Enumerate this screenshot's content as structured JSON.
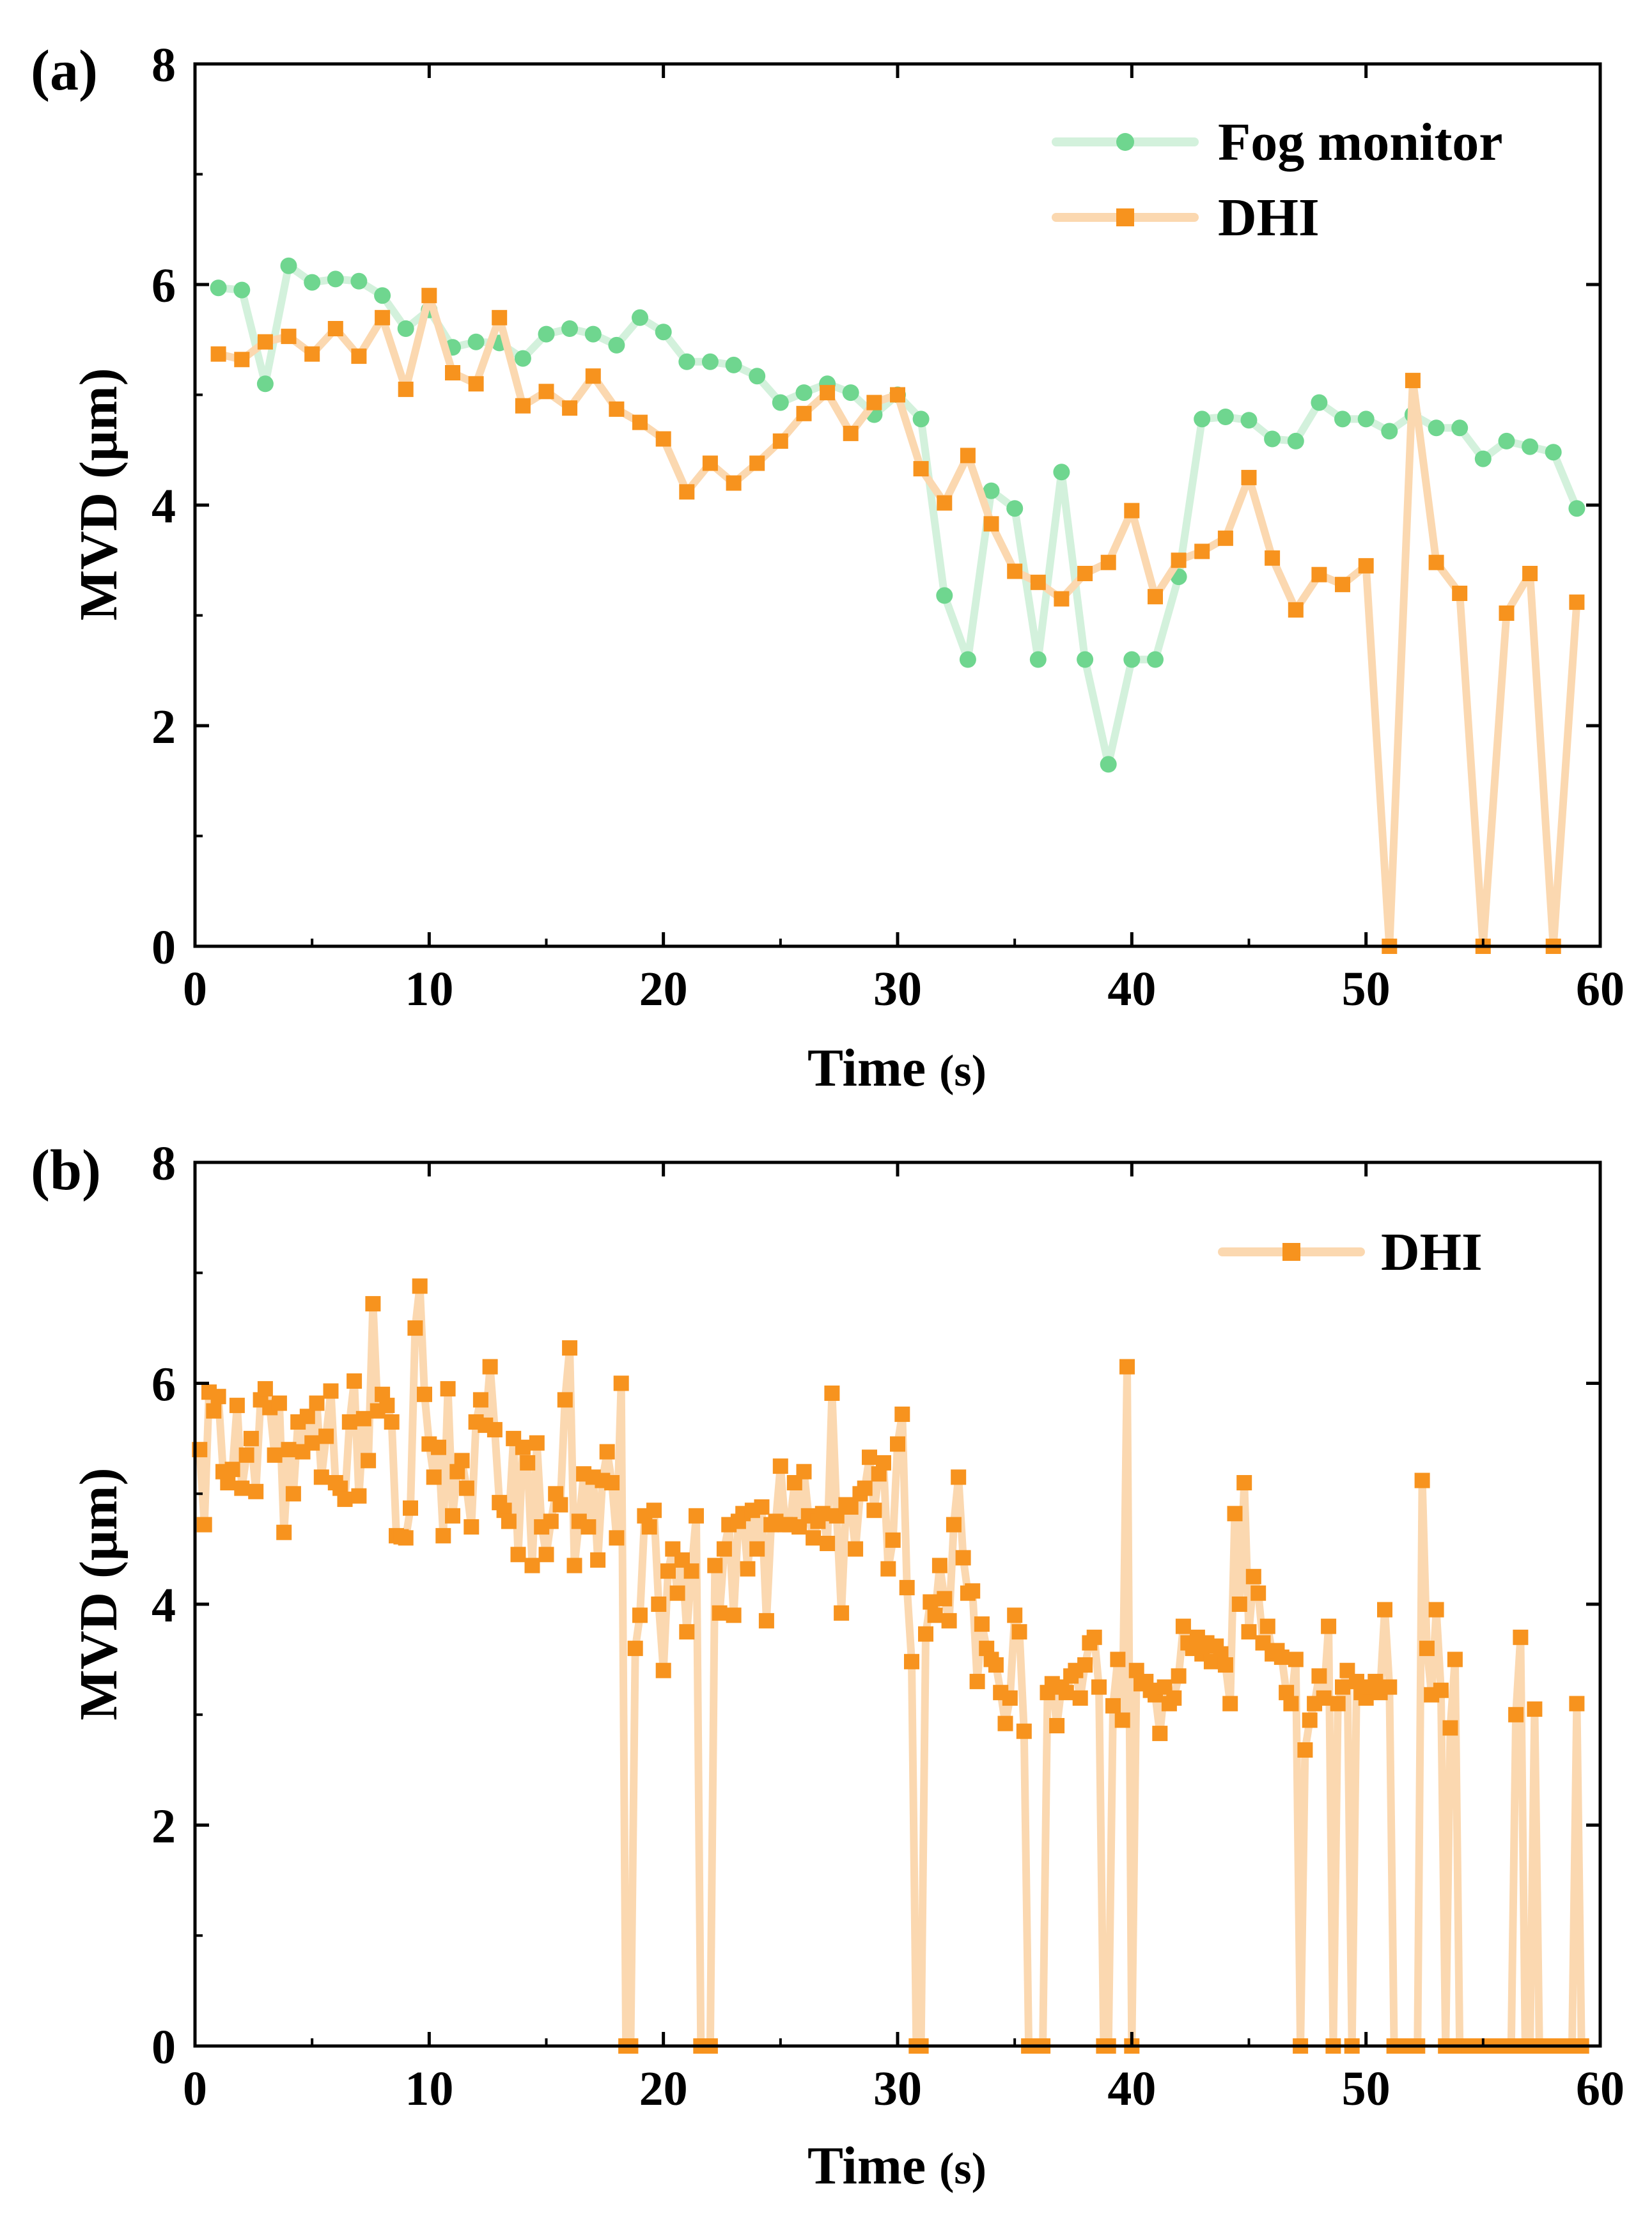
{
  "chart_data": [
    {
      "type": "line",
      "panel_label": "(a)",
      "xlabel": "Time",
      "xlabel_unit": "(s)",
      "ylabel": "MVD (μm)",
      "xlim": [
        0,
        60
      ],
      "ylim": [
        0,
        8
      ],
      "xticks": [
        0,
        10,
        20,
        30,
        40,
        50,
        60
      ],
      "yticks": [
        0,
        2,
        4,
        6,
        8
      ],
      "grid": false,
      "legend_position": "top-right",
      "series": [
        {
          "name": "Fog monitor",
          "marker": "circle",
          "color": "#6fd68f",
          "line_color": "#d3f1dc",
          "x": [
            1,
            2,
            3,
            4,
            5,
            6,
            7,
            8,
            9,
            10,
            11,
            12,
            13,
            14,
            15,
            16,
            17,
            18,
            19,
            20,
            21,
            22,
            23,
            24,
            25,
            26,
            27,
            28,
            29,
            30,
            31,
            32,
            33,
            34,
            35,
            36,
            37,
            38,
            39,
            40,
            41,
            42,
            43,
            44,
            45,
            46,
            47,
            48,
            49,
            50,
            51,
            52,
            53,
            54,
            55,
            56,
            57,
            58,
            59
          ],
          "y": [
            5.97,
            5.95,
            5.1,
            6.17,
            6.02,
            6.05,
            6.03,
            5.9,
            5.6,
            5.77,
            5.43,
            5.48,
            5.47,
            5.33,
            5.55,
            5.6,
            5.55,
            5.45,
            5.7,
            5.57,
            5.3,
            5.3,
            5.27,
            5.17,
            4.93,
            5.02,
            5.1,
            5.02,
            4.82,
            5.0,
            4.78,
            3.18,
            2.6,
            4.13,
            3.97,
            2.6,
            4.3,
            2.6,
            1.65,
            2.6,
            2.6,
            3.35,
            4.78,
            4.8,
            4.77,
            4.6,
            4.58,
            4.93,
            4.78,
            4.78,
            4.67,
            4.82,
            4.7,
            4.7,
            4.42,
            4.58,
            4.53,
            4.48,
            3.97
          ]
        },
        {
          "name": "DHI",
          "marker": "square",
          "color": "#f7931e",
          "line_color": "#fbd8b0",
          "x": [
            1,
            2,
            3,
            4,
            5,
            6,
            7,
            8,
            9,
            10,
            11,
            12,
            13,
            14,
            15,
            16,
            17,
            18,
            19,
            20,
            21,
            22,
            23,
            24,
            25,
            26,
            27,
            28,
            29,
            30,
            31,
            32,
            33,
            34,
            35,
            36,
            37,
            38,
            39,
            40,
            41,
            42,
            43,
            44,
            45,
            46,
            47,
            48,
            49,
            50,
            51,
            52,
            53,
            54,
            55,
            56,
            57,
            58,
            59
          ],
          "y": [
            5.37,
            5.32,
            5.48,
            5.53,
            5.37,
            5.6,
            5.35,
            5.7,
            5.05,
            5.9,
            5.2,
            5.1,
            5.7,
            4.9,
            5.03,
            4.88,
            5.17,
            4.87,
            4.75,
            4.6,
            4.12,
            4.38,
            4.2,
            4.38,
            4.58,
            4.83,
            5.02,
            4.65,
            4.93,
            5.0,
            4.33,
            4.02,
            4.45,
            3.83,
            3.4,
            3.3,
            3.15,
            3.38,
            3.48,
            3.95,
            3.17,
            3.5,
            3.58,
            3.7,
            4.25,
            3.52,
            3.05,
            3.37,
            3.28,
            3.45,
            0,
            5.13,
            3.48,
            3.2,
            0,
            3.02,
            3.38,
            0,
            3.12
          ]
        }
      ]
    },
    {
      "type": "line",
      "panel_label": "(b)",
      "xlabel": "Time",
      "xlabel_unit": "(s)",
      "ylabel": "MVD (μm)",
      "xlim": [
        0,
        60
      ],
      "ylim": [
        0,
        8
      ],
      "xticks": [
        0,
        10,
        20,
        30,
        40,
        50,
        60
      ],
      "yticks": [
        0,
        2,
        4,
        6,
        8
      ],
      "grid": false,
      "legend_position": "top-right",
      "series": [
        {
          "name": "DHI",
          "marker": "square",
          "color": "#f7931e",
          "line_color": "#fbd8b0",
          "x": [
            0.2,
            0.4,
            0.6,
            0.8,
            1.0,
            1.2,
            1.4,
            1.6,
            1.8,
            2.0,
            2.2,
            2.4,
            2.6,
            2.8,
            3.0,
            3.2,
            3.4,
            3.6,
            3.8,
            4.0,
            4.2,
            4.4,
            4.6,
            4.8,
            5.0,
            5.2,
            5.4,
            5.6,
            5.8,
            6.0,
            6.2,
            6.4,
            6.6,
            6.8,
            7.0,
            7.2,
            7.4,
            7.6,
            7.8,
            8.0,
            8.2,
            8.4,
            8.6,
            8.8,
            9.0,
            9.2,
            9.4,
            9.6,
            9.8,
            10.0,
            10.2,
            10.4,
            10.6,
            10.8,
            11.0,
            11.2,
            11.4,
            11.6,
            11.8,
            12.0,
            12.2,
            12.4,
            12.6,
            12.8,
            13.0,
            13.2,
            13.4,
            13.6,
            13.8,
            14.0,
            14.2,
            14.4,
            14.6,
            14.8,
            15.0,
            15.2,
            15.4,
            15.6,
            15.8,
            16.0,
            16.2,
            16.4,
            16.6,
            16.8,
            17.0,
            17.2,
            17.4,
            17.6,
            17.8,
            18.0,
            18.2,
            18.4,
            18.6,
            18.8,
            19.0,
            19.2,
            19.4,
            19.6,
            19.8,
            20.0,
            20.2,
            20.4,
            20.6,
            20.8,
            21.0,
            21.2,
            21.4,
            21.6,
            21.8,
            22.0,
            22.2,
            22.4,
            22.6,
            22.8,
            23.0,
            23.2,
            23.4,
            23.6,
            23.8,
            24.0,
            24.2,
            24.4,
            24.6,
            24.8,
            25.0,
            25.2,
            25.4,
            25.6,
            25.8,
            26.0,
            26.2,
            26.4,
            26.6,
            26.8,
            27.0,
            27.2,
            27.4,
            27.6,
            27.8,
            28.0,
            28.2,
            28.4,
            28.6,
            28.8,
            29.0,
            29.2,
            29.4,
            29.6,
            29.8,
            30.0,
            30.2,
            30.4,
            30.6,
            30.8,
            31.0,
            31.2,
            31.4,
            31.6,
            31.8,
            32.0,
            32.2,
            32.4,
            32.6,
            32.8,
            33.0,
            33.2,
            33.4,
            33.6,
            33.8,
            34.0,
            34.2,
            34.4,
            34.6,
            34.8,
            35.0,
            35.2,
            35.4,
            35.6,
            35.8,
            36.0,
            36.2,
            36.4,
            36.6,
            36.8,
            37.0,
            37.2,
            37.4,
            37.6,
            37.8,
            38.0,
            38.2,
            38.4,
            38.6,
            38.8,
            39.0,
            39.2,
            39.4,
            39.6,
            39.8,
            40.0,
            40.2,
            40.4,
            40.6,
            40.8,
            41.0,
            41.2,
            41.4,
            41.6,
            41.8,
            42.0,
            42.2,
            42.4,
            42.6,
            42.8,
            43.0,
            43.2,
            43.4,
            43.6,
            43.8,
            44.0,
            44.2,
            44.4,
            44.6,
            44.8,
            45.0,
            45.2,
            45.4,
            45.6,
            45.8,
            46.0,
            46.2,
            46.4,
            46.6,
            46.8,
            47.0,
            47.2,
            47.4,
            47.6,
            47.8,
            48.0,
            48.2,
            48.4,
            48.6,
            48.8,
            49.0,
            49.2,
            49.4,
            49.6,
            49.8,
            50.0,
            50.2,
            50.4,
            50.6,
            50.8,
            51.0,
            51.2,
            51.4,
            51.6,
            51.8,
            52.0,
            52.2,
            52.4,
            52.6,
            52.8,
            53.0,
            53.2,
            53.4,
            53.6,
            53.8,
            54.0,
            54.2,
            54.4,
            54.6,
            54.8,
            55.0,
            55.2,
            55.4,
            55.6,
            55.8,
            56.0,
            56.2,
            56.4,
            56.6,
            56.8,
            57.0,
            57.2,
            57.4,
            57.6,
            57.8,
            58.0,
            58.2,
            58.4,
            58.6,
            58.8,
            59.0,
            59.2
          ],
          "y": [
            5.4,
            4.72,
            5.92,
            5.75,
            5.88,
            5.2,
            5.1,
            5.22,
            5.8,
            5.05,
            5.35,
            5.5,
            5.02,
            5.85,
            5.95,
            5.78,
            5.35,
            5.82,
            4.65,
            5.4,
            5.0,
            5.65,
            5.38,
            5.7,
            5.46,
            5.82,
            5.15,
            5.52,
            5.93,
            5.1,
            5.05,
            4.95,
            5.65,
            6.02,
            4.98,
            5.68,
            5.3,
            6.72,
            5.75,
            5.9,
            5.8,
            5.65,
            4.62,
            4.61,
            4.6,
            4.87,
            6.5,
            6.88,
            5.9,
            5.45,
            5.15,
            5.42,
            4.62,
            5.95,
            4.8,
            5.2,
            5.3,
            5.05,
            4.7,
            5.65,
            5.85,
            5.62,
            6.15,
            5.58,
            4.92,
            4.85,
            4.75,
            5.5,
            4.45,
            5.42,
            5.28,
            4.35,
            5.46,
            4.7,
            4.45,
            4.75,
            5.0,
            4.9,
            5.85,
            6.32,
            4.35,
            4.75,
            5.18,
            4.7,
            5.15,
            4.4,
            5.12,
            5.38,
            5.1,
            4.6,
            6.0,
            0,
            0,
            3.6,
            3.9,
            4.8,
            4.7,
            4.85,
            4.0,
            3.4,
            4.3,
            4.5,
            4.1,
            4.4,
            3.75,
            4.3,
            4.8,
            0,
            0,
            0,
            4.35,
            3.92,
            4.5,
            4.72,
            3.9,
            4.75,
            4.82,
            4.32,
            4.85,
            4.5,
            4.88,
            3.85,
            4.72,
            4.75,
            5.25,
            4.72,
            4.72,
            5.1,
            4.7,
            5.2,
            4.8,
            4.6,
            4.75,
            4.82,
            4.55,
            5.91,
            4.8,
            3.92,
            4.9,
            4.88,
            4.5,
            5.0,
            5.05,
            5.33,
            4.85,
            5.18,
            5.28,
            4.32,
            4.58,
            5.45,
            5.72,
            4.15,
            3.48,
            0,
            0,
            3.73,
            4.02,
            3.9,
            4.35,
            4.05,
            3.85,
            4.72,
            5.15,
            4.42,
            4.1,
            4.12,
            3.3,
            3.82,
            3.6,
            3.5,
            3.45,
            3.2,
            2.92,
            3.15,
            3.9,
            3.75,
            2.85,
            0,
            0,
            0,
            0,
            3.2,
            3.28,
            2.9,
            3.25,
            3.2,
            3.35,
            3.4,
            3.15,
            3.45,
            3.65,
            3.7,
            3.25,
            0,
            0,
            3.08,
            3.5,
            2.95,
            6.15,
            0,
            3.4,
            3.28,
            3.3,
            3.22,
            3.18,
            2.83,
            3.25,
            3.1,
            3.15,
            3.35,
            3.8,
            3.65,
            3.6,
            3.7,
            3.55,
            3.65,
            3.48,
            3.62,
            3.55,
            3.45,
            3.1,
            4.82,
            4.0,
            5.1,
            3.75,
            4.25,
            4.1,
            3.65,
            3.8,
            3.55,
            3.58,
            3.52,
            3.2,
            3.1,
            3.5,
            0,
            2.68,
            2.95,
            3.1,
            3.35,
            3.15,
            3.8,
            0,
            3.1,
            3.25,
            3.4,
            0,
            3.3,
            3.2,
            3.15,
            3.25,
            3.3,
            3.2,
            3.95,
            3.25,
            0,
            0,
            0,
            0,
            0,
            0,
            5.12,
            3.6,
            3.18,
            3.95,
            3.22,
            0,
            2.88,
            3.5,
            0,
            0,
            0,
            0,
            0,
            0,
            0,
            0,
            0,
            0,
            0,
            0,
            3.0,
            3.7,
            0,
            0,
            3.05,
            0,
            0,
            0,
            0,
            0,
            0,
            0,
            0,
            3.1,
            0
          ]
        }
      ]
    }
  ]
}
